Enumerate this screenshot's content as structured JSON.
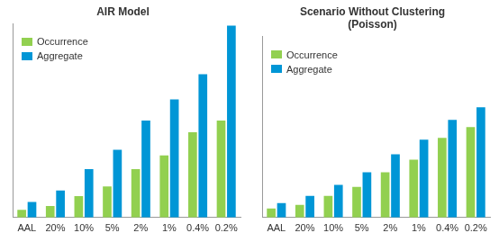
{
  "chart_data": [
    {
      "type": "bar",
      "title": "AIR Model",
      "categories": [
        "AAL",
        "20%",
        "10%",
        "5%",
        "2%",
        "1%",
        "0.4%",
        "0.2%"
      ],
      "series": [
        {
          "name": "Occurrence",
          "color": "#92d050",
          "values": [
            4,
            6,
            11,
            16,
            25,
            32,
            44,
            50
          ]
        },
        {
          "name": "Aggregate",
          "color": "#0096d6",
          "values": [
            8,
            14,
            25,
            35,
            50,
            61,
            74,
            99
          ]
        }
      ],
      "ylim": [
        0,
        100
      ],
      "yticks": [],
      "grid": false,
      "legend": "upper left",
      "tick_labels": "x"
    },
    {
      "type": "bar",
      "title": [
        "Scenario Without Clustering",
        "(Poisson)"
      ],
      "categories": [
        "AAL",
        "20%",
        "10%",
        "5%",
        "2%",
        "1%",
        "0.4%",
        "0.2%"
      ],
      "series": [
        {
          "name": "Occurrence",
          "color": "#92d050",
          "values": [
            5,
            7,
            12,
            17,
            25,
            32,
            44,
            50
          ]
        },
        {
          "name": "Aggregate",
          "color": "#0096d6",
          "values": [
            8,
            12,
            18,
            25,
            35,
            43,
            54,
            61
          ]
        }
      ],
      "ylim": [
        0,
        100
      ],
      "yticks": [],
      "grid": false,
      "legend": "upper left",
      "tick_labels": "x"
    }
  ]
}
